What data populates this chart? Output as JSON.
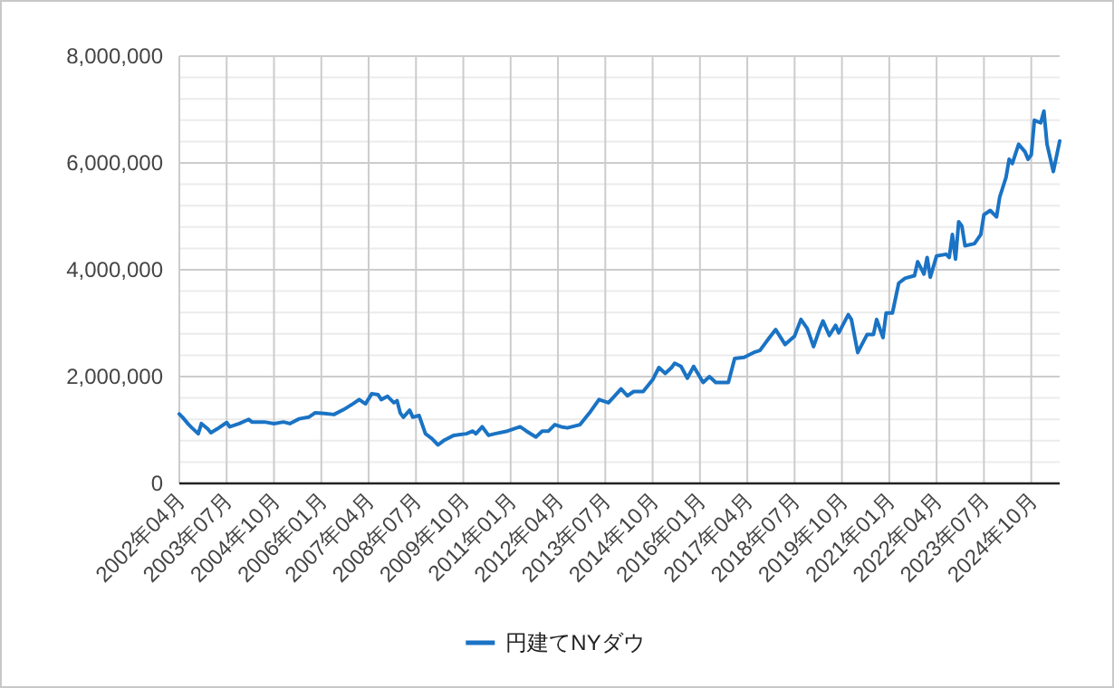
{
  "chart_data": {
    "type": "line",
    "x": [
      "2002-04",
      "2002-05",
      "2002-07",
      "2002-08",
      "2002-10",
      "2002-11",
      "2003-01",
      "2003-02",
      "2003-04",
      "2003-07",
      "2003-08",
      "2003-11",
      "2004-02",
      "2004-03",
      "2004-07",
      "2004-10",
      "2005-01",
      "2005-03",
      "2005-06",
      "2005-09",
      "2005-11",
      "2006-02",
      "2006-05",
      "2006-08",
      "2006-11",
      "2007-01",
      "2007-03",
      "2007-05",
      "2007-07",
      "2007-08",
      "2007-10",
      "2007-12",
      "2008-01",
      "2008-02",
      "2008-03",
      "2008-05",
      "2008-06",
      "2008-08",
      "2008-10",
      "2008-12",
      "2009-02",
      "2009-04",
      "2009-07",
      "2009-11",
      "2010-01",
      "2010-02",
      "2010-04",
      "2010-06",
      "2010-08",
      "2010-12",
      "2011-04",
      "2011-06",
      "2011-09",
      "2011-11",
      "2012-01",
      "2012-03",
      "2012-05",
      "2012-07",
      "2012-11",
      "2013-02",
      "2013-05",
      "2013-08",
      "2013-12",
      "2014-02",
      "2014-04",
      "2014-07",
      "2014-10",
      "2014-12",
      "2015-02",
      "2015-04",
      "2015-05",
      "2015-07",
      "2015-09",
      "2015-11",
      "2016-02",
      "2016-04",
      "2016-06",
      "2016-10",
      "2016-12",
      "2017-03",
      "2017-06",
      "2017-08",
      "2017-11",
      "2018-01",
      "2018-04",
      "2018-07",
      "2018-09",
      "2018-11",
      "2019-01",
      "2019-03",
      "2019-04",
      "2019-06",
      "2019-08",
      "2019-09",
      "2019-12",
      "2020-01",
      "2020-03",
      "2020-06",
      "2020-08",
      "2020-09",
      "2020-11",
      "2020-12",
      "2021-02",
      "2021-04",
      "2021-06",
      "2021-09",
      "2021-10",
      "2021-12",
      "2022-01",
      "2022-02",
      "2022-04",
      "2022-07",
      "2022-08",
      "2022-09",
      "2022-10",
      "2022-11",
      "2022-12",
      "2023-01",
      "2023-04",
      "2023-06",
      "2023-07",
      "2023-09",
      "2023-11",
      "2023-12",
      "2024-02",
      "2024-03",
      "2024-04",
      "2024-06",
      "2024-08",
      "2024-09",
      "2024-10",
      "2024-11",
      "2025-01",
      "2025-02",
      "2025-03",
      "2025-05",
      "2025-07"
    ],
    "series": [
      {
        "name": "円建てNYダウ",
        "color": "#1a73c4",
        "values": [
          1300000,
          1240000,
          1100000,
          1040000,
          930000,
          1120000,
          1020000,
          950000,
          1020000,
          1140000,
          1060000,
          1120000,
          1200000,
          1150000,
          1150000,
          1120000,
          1150000,
          1120000,
          1210000,
          1240000,
          1320000,
          1310000,
          1290000,
          1380000,
          1490000,
          1570000,
          1490000,
          1680000,
          1660000,
          1570000,
          1630000,
          1510000,
          1550000,
          1320000,
          1240000,
          1370000,
          1240000,
          1270000,
          930000,
          840000,
          720000,
          810000,
          900000,
          930000,
          980000,
          930000,
          1060000,
          900000,
          930000,
          980000,
          1060000,
          980000,
          870000,
          980000,
          980000,
          1100000,
          1060000,
          1040000,
          1100000,
          1320000,
          1570000,
          1510000,
          1770000,
          1640000,
          1720000,
          1720000,
          1940000,
          2170000,
          2060000,
          2170000,
          2250000,
          2190000,
          1970000,
          2190000,
          1890000,
          2000000,
          1890000,
          1890000,
          2340000,
          2360000,
          2450000,
          2490000,
          2730000,
          2880000,
          2600000,
          2760000,
          3070000,
          2900000,
          2560000,
          2900000,
          3040000,
          2770000,
          2960000,
          2820000,
          3160000,
          3070000,
          2450000,
          2790000,
          2790000,
          3070000,
          2730000,
          3190000,
          3190000,
          3750000,
          3840000,
          3890000,
          4150000,
          3920000,
          4230000,
          3860000,
          4260000,
          4290000,
          4230000,
          4660000,
          4200000,
          4900000,
          4820000,
          4450000,
          4490000,
          4660000,
          5030000,
          5110000,
          4990000,
          5360000,
          5730000,
          6070000,
          5990000,
          6350000,
          6210000,
          6070000,
          6150000,
          6800000,
          6750000,
          6970000,
          6350000,
          5840000,
          6410000
        ]
      }
    ],
    "xlim": [
      "2002-04",
      "2025-07"
    ],
    "xticks": [
      {
        "value": "2002-04",
        "label": "2002年04月"
      },
      {
        "value": "2003-07",
        "label": "2003年07月"
      },
      {
        "value": "2004-10",
        "label": "2004年10月"
      },
      {
        "value": "2006-01",
        "label": "2006年01月"
      },
      {
        "value": "2007-04",
        "label": "2007年04月"
      },
      {
        "value": "2008-07",
        "label": "2008年07月"
      },
      {
        "value": "2009-10",
        "label": "2009年10月"
      },
      {
        "value": "2011-01",
        "label": "2011年01月"
      },
      {
        "value": "2012-04",
        "label": "2012年04月"
      },
      {
        "value": "2013-07",
        "label": "2013年07月"
      },
      {
        "value": "2014-10",
        "label": "2014年10月"
      },
      {
        "value": "2016-01",
        "label": "2016年01月"
      },
      {
        "value": "2017-04",
        "label": "2017年04月"
      },
      {
        "value": "2018-07",
        "label": "2018年07月"
      },
      {
        "value": "2019-10",
        "label": "2019年10月"
      },
      {
        "value": "2021-01",
        "label": "2021年01月"
      },
      {
        "value": "2022-04",
        "label": "2022年04月"
      },
      {
        "value": "2023-07",
        "label": "2023年07月"
      },
      {
        "value": "2024-10",
        "label": "2024年10月"
      }
    ],
    "ylim": [
      0,
      8000000
    ],
    "yticks": [
      0,
      {
        "value": 400000,
        "label": null
      },
      {
        "value": 800000,
        "label": null
      },
      {
        "value": 1200000,
        "label": null
      },
      {
        "value": 1600000,
        "label": null
      },
      {
        "value": 2000000,
        "label": "2,000,000"
      },
      {
        "value": 2400000,
        "label": null
      },
      {
        "value": 2800000,
        "label": null
      },
      {
        "value": 3200000,
        "label": null
      },
      {
        "value": 3600000,
        "label": null
      },
      {
        "value": 4000000,
        "label": "4,000,000"
      },
      {
        "value": 4400000,
        "label": null
      },
      {
        "value": 4800000,
        "label": null
      },
      {
        "value": 5200000,
        "label": null
      },
      {
        "value": 5600000,
        "label": null
      },
      {
        "value": 6000000,
        "label": "6,000,000"
      },
      {
        "value": 6400000,
        "label": null
      },
      {
        "value": 6800000,
        "label": null
      },
      {
        "value": 7200000,
        "label": null
      },
      {
        "value": 7600000,
        "label": null
      },
      {
        "value": 8000000,
        "label": "8,000,000"
      }
    ],
    "grid": true,
    "legend": "bottom",
    "line_style": "solid",
    "marker": "none"
  }
}
